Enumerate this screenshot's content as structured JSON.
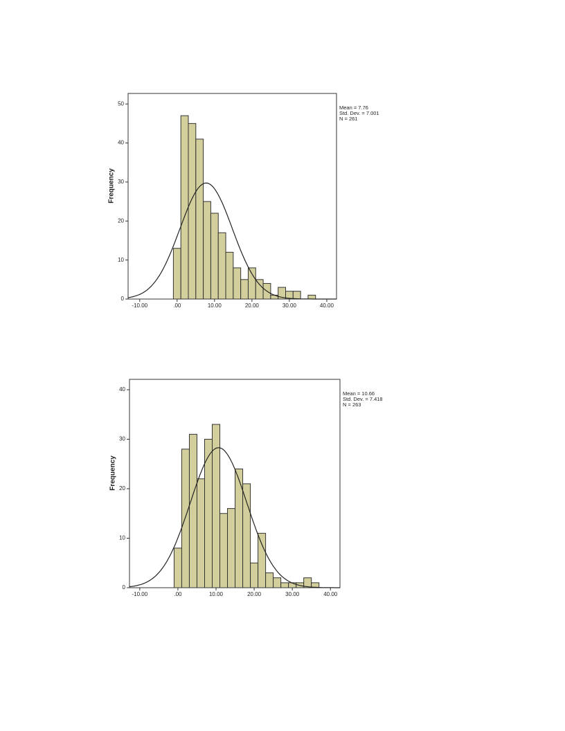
{
  "chart_data": [
    {
      "type": "histogram",
      "ylabel": "Frequency",
      "color": "#d3cf9c",
      "bins": [
        -1,
        1,
        3,
        5,
        7,
        9,
        11,
        13,
        15,
        17,
        19,
        21,
        23,
        25,
        27,
        29,
        31,
        33,
        35,
        37
      ],
      "values": [
        13,
        47,
        45,
        41,
        25,
        22,
        17,
        12,
        8,
        5,
        8,
        5,
        4,
        1,
        3,
        2,
        2,
        0,
        1
      ],
      "xlim": [
        -13.1,
        42.6
      ],
      "ylim": [
        0,
        52.7
      ],
      "xticks": [
        {
          "value": -10,
          "label": "-10.00"
        },
        {
          "value": 0,
          "label": ".00"
        },
        {
          "value": 10,
          "label": "10.00"
        },
        {
          "value": 20,
          "label": "20.00"
        },
        {
          "value": 30,
          "label": "30.00"
        },
        {
          "value": 40,
          "label": "40.00"
        }
      ],
      "yticks": [
        0,
        10,
        20,
        30,
        40,
        50
      ],
      "stats": [
        {
          "value": 7.76,
          "label": "Mean = 7.76"
        },
        {
          "value": 7.001,
          "label": "Std. Dev. = 7.001"
        },
        {
          "value": 261,
          "label": "N = 261"
        }
      ]
    },
    {
      "type": "histogram",
      "ylabel": "Frequency",
      "color": "#d3cf9c",
      "bins": [
        -1,
        1,
        3,
        5,
        7,
        9,
        11,
        13,
        15,
        17,
        19,
        21,
        23,
        25,
        27,
        29,
        31,
        33,
        35,
        37
      ],
      "values": [
        8,
        28,
        31,
        22,
        30,
        33,
        15,
        16,
        24,
        21,
        5,
        11,
        3,
        2,
        1,
        1,
        1,
        2,
        1
      ],
      "xlim": [
        -12.7,
        42.5
      ],
      "ylim": [
        0,
        42.1
      ],
      "xticks": [
        {
          "value": -10,
          "label": "-10.00"
        },
        {
          "value": 0,
          "label": ".00"
        },
        {
          "value": 10,
          "label": "10.00"
        },
        {
          "value": 20,
          "label": "20.00"
        },
        {
          "value": 30,
          "label": "30.00"
        },
        {
          "value": 40,
          "label": "40.00"
        }
      ],
      "yticks": [
        0,
        10,
        20,
        30,
        40
      ],
      "stats": [
        {
          "value": 10.66,
          "label": "Mean = 10.66"
        },
        {
          "value": 7.418,
          "label": "Std. Dev. = 7.418"
        },
        {
          "value": 263,
          "label": "N = 263"
        }
      ]
    }
  ]
}
